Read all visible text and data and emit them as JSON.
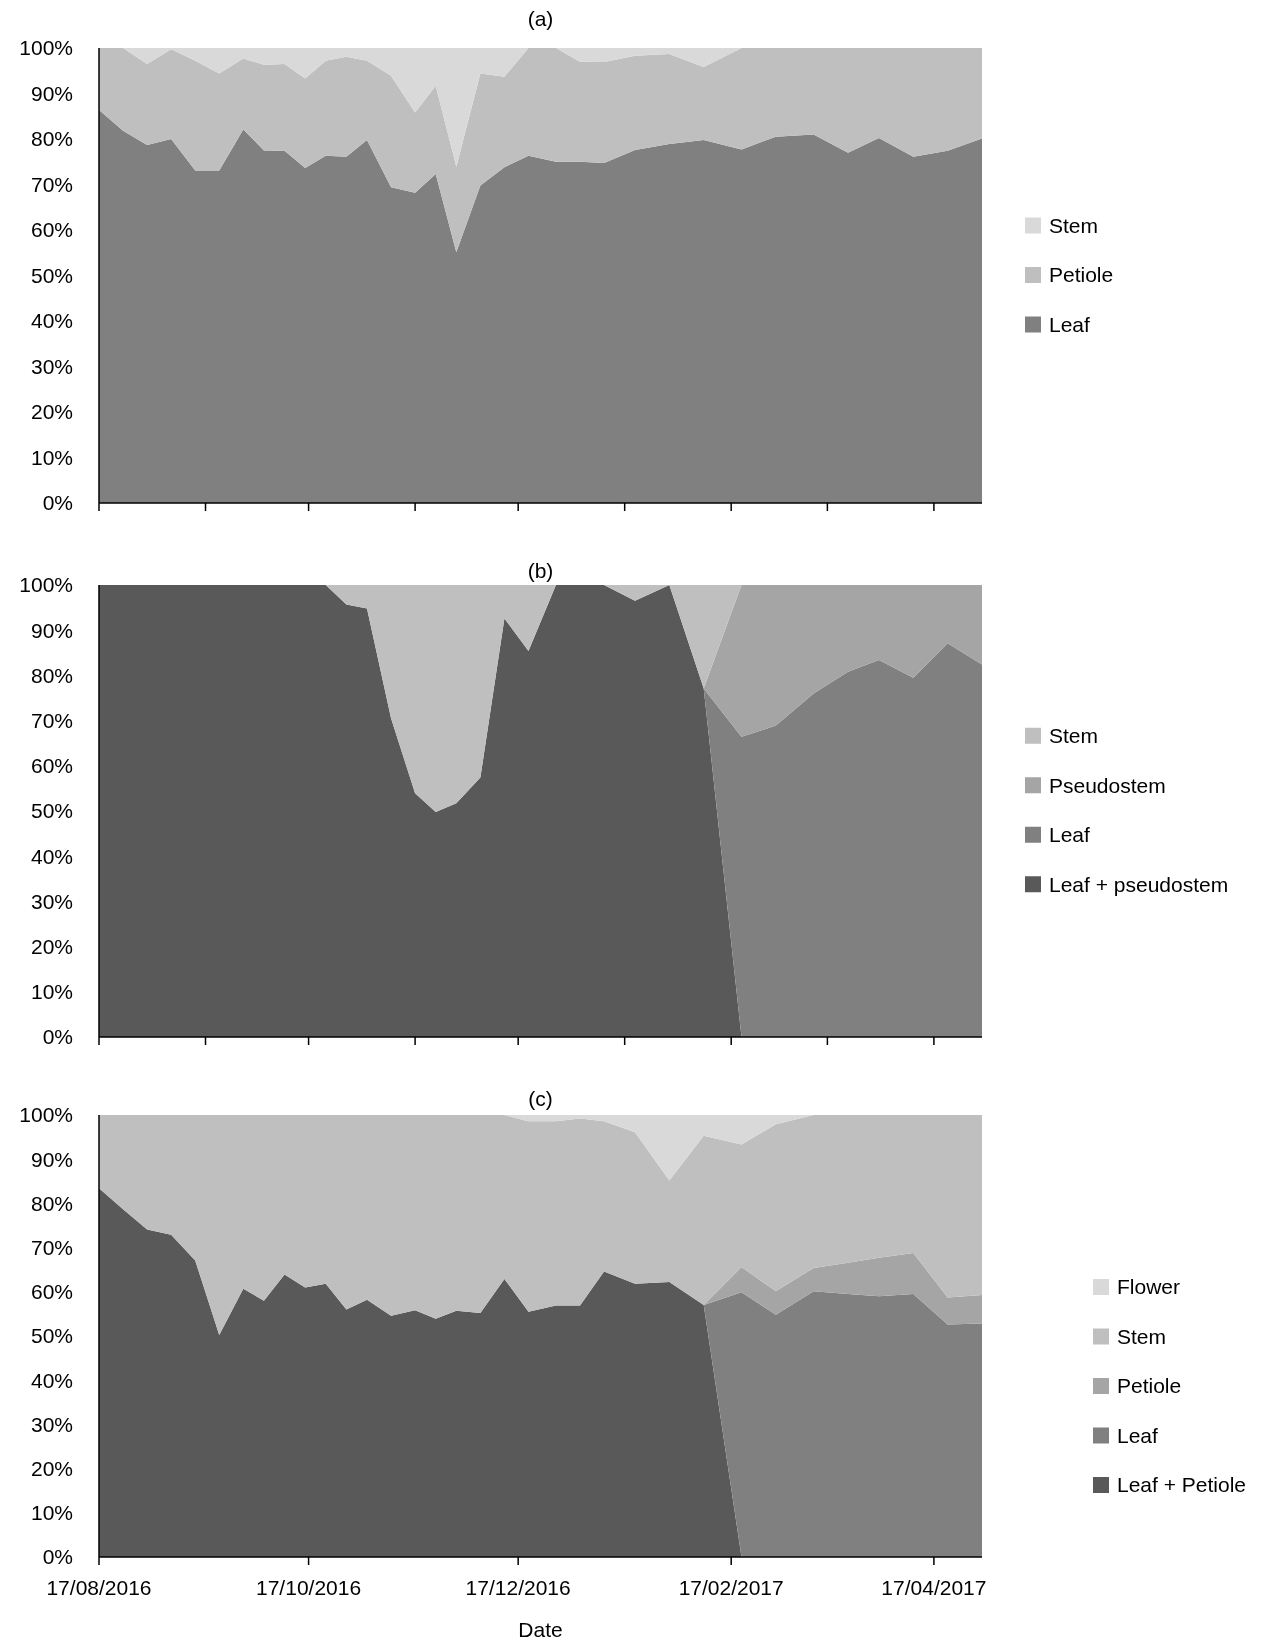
{
  "chart_data": [
    {
      "type": "area",
      "stacked": true,
      "title": "(a)",
      "legend": "right",
      "tick_labels": "y",
      "x": [
        "2016-08-17",
        "2016-08-24",
        "2016-08-31",
        "2016-09-07",
        "2016-09-14",
        "2016-09-21",
        "2016-09-28",
        "2016-10-04",
        "2016-10-10",
        "2016-10-16",
        "2016-10-22",
        "2016-10-28",
        "2016-11-03",
        "2016-11-10",
        "2016-11-17",
        "2016-11-23",
        "2016-11-29",
        "2016-12-06",
        "2016-12-13",
        "2016-12-20",
        "2016-12-28",
        "2017-01-04",
        "2017-01-11",
        "2017-01-20",
        "2017-01-30",
        "2017-02-09",
        "2017-02-20",
        "2017-03-02",
        "2017-03-13",
        "2017-03-23",
        "2017-04-01",
        "2017-04-11",
        "2017-04-21",
        "2017-05-01"
      ],
      "xlim": [
        "2016-08-17",
        "2017-05-01"
      ],
      "xticks": [
        {
          "value": "2016-08-17",
          "label": null
        },
        {
          "value": "2016-09-17",
          "label": null
        },
        {
          "value": "2016-10-17",
          "label": null
        },
        {
          "value": "2016-11-17",
          "label": null
        },
        {
          "value": "2016-12-17",
          "label": null
        },
        {
          "value": "2017-01-17",
          "label": null
        },
        {
          "value": "2017-02-17",
          "label": null
        },
        {
          "value": "2017-03-17",
          "label": null
        },
        {
          "value": "2017-04-17",
          "label": null
        }
      ],
      "ylim": [
        0,
        100
      ],
      "yticks": [
        {
          "value": 0,
          "label": "0%"
        },
        {
          "value": 10,
          "label": "10%"
        },
        {
          "value": 20,
          "label": "20%"
        },
        {
          "value": 30,
          "label": "30%"
        },
        {
          "value": 40,
          "label": "40%"
        },
        {
          "value": 50,
          "label": "50%"
        },
        {
          "value": 60,
          "label": "60%"
        },
        {
          "value": 70,
          "label": "70%"
        },
        {
          "value": 80,
          "label": "80%"
        },
        {
          "value": 90,
          "label": "90%"
        },
        {
          "value": 100,
          "label": "100%"
        }
      ],
      "series": [
        {
          "name": "Leaf",
          "color": "#808080",
          "values": [
            86.4,
            81.8,
            78.7,
            80.0,
            73.1,
            73.1,
            82.1,
            77.5,
            77.4,
            73.6,
            76.3,
            76.1,
            79.8,
            69.4,
            68.2,
            72.3,
            55.1,
            69.8,
            73.8,
            76.3,
            75.0,
            75.0,
            74.7,
            77.6,
            78.9,
            79.8,
            77.7,
            80.5,
            81.0,
            77.0,
            80.2,
            76.1,
            77.4,
            80.1
          ]
        },
        {
          "name": "Petiole",
          "color": "#bfbfbf",
          "values": [
            13.6,
            18.2,
            17.8,
            19.7,
            24.1,
            21.3,
            15.6,
            18.8,
            19.1,
            19.7,
            20.9,
            22.0,
            17.4,
            24.5,
            17.6,
            19.4,
            18.8,
            24.6,
            19.9,
            23.7,
            25.0,
            22.0,
            22.2,
            20.7,
            19.8,
            16.0,
            22.3,
            19.5,
            19.0,
            23.0,
            19.8,
            23.9,
            22.6,
            19.9
          ]
        },
        {
          "name": "Stem",
          "color": "#d9d9d9",
          "values": [
            0,
            0,
            3.5,
            0.3,
            2.8,
            5.6,
            2.3,
            3.7,
            3.5,
            6.7,
            2.8,
            1.9,
            2.8,
            6.1,
            14.2,
            8.3,
            26.1,
            5.6,
            6.3,
            0,
            0,
            3.0,
            3.1,
            1.7,
            1.3,
            4.2,
            0,
            null,
            null,
            null,
            null,
            null,
            null,
            null
          ]
        }
      ]
    },
    {
      "type": "area",
      "stacked": true,
      "title": "(b)",
      "legend": "right",
      "tick_labels": "y",
      "x": [
        "2016-08-17",
        "2016-08-24",
        "2016-08-31",
        "2016-09-07",
        "2016-09-14",
        "2016-09-21",
        "2016-09-28",
        "2016-10-04",
        "2016-10-10",
        "2016-10-16",
        "2016-10-22",
        "2016-10-28",
        "2016-11-03",
        "2016-11-10",
        "2016-11-17",
        "2016-11-23",
        "2016-11-29",
        "2016-12-06",
        "2016-12-13",
        "2016-12-20",
        "2016-12-28",
        "2017-01-04",
        "2017-01-11",
        "2017-01-20",
        "2017-01-30",
        "2017-02-09",
        "2017-02-20",
        "2017-03-02",
        "2017-03-13",
        "2017-03-23",
        "2017-04-01",
        "2017-04-11",
        "2017-04-21",
        "2017-05-01"
      ],
      "xlim": [
        "2016-08-17",
        "2017-05-01"
      ],
      "xticks": [
        {
          "value": "2016-08-17",
          "label": null
        },
        {
          "value": "2016-09-17",
          "label": null
        },
        {
          "value": "2016-10-17",
          "label": null
        },
        {
          "value": "2016-11-17",
          "label": null
        },
        {
          "value": "2016-12-17",
          "label": null
        },
        {
          "value": "2017-01-17",
          "label": null
        },
        {
          "value": "2017-02-17",
          "label": null
        },
        {
          "value": "2017-03-17",
          "label": null
        },
        {
          "value": "2017-04-17",
          "label": null
        }
      ],
      "ylim": [
        0,
        100
      ],
      "yticks": [
        {
          "value": 0,
          "label": "0%"
        },
        {
          "value": 10,
          "label": "10%"
        },
        {
          "value": 20,
          "label": "20%"
        },
        {
          "value": 30,
          "label": "30%"
        },
        {
          "value": 40,
          "label": "40%"
        },
        {
          "value": 50,
          "label": "50%"
        },
        {
          "value": 60,
          "label": "60%"
        },
        {
          "value": 70,
          "label": "70%"
        },
        {
          "value": 80,
          "label": "80%"
        },
        {
          "value": 90,
          "label": "90%"
        },
        {
          "value": 100,
          "label": "100%"
        }
      ],
      "series": [
        {
          "name": "Leaf + pseudostem",
          "color": "#595959",
          "values": [
            100,
            100,
            100,
            100,
            100,
            100,
            100,
            100,
            100,
            100,
            100,
            95.7,
            94.8,
            70.5,
            53.9,
            49.8,
            51.7,
            57.4,
            92.6,
            85.4,
            100,
            100,
            100,
            96.5,
            100,
            77.1,
            0,
            null,
            null,
            null,
            null,
            null,
            null,
            null
          ]
        },
        {
          "name": "Leaf",
          "color": "#808080",
          "values": [
            null,
            null,
            null,
            null,
            null,
            null,
            null,
            null,
            null,
            null,
            null,
            null,
            null,
            null,
            null,
            null,
            null,
            null,
            null,
            null,
            null,
            null,
            null,
            null,
            null,
            0,
            66.4,
            68.9,
            76.0,
            80.8,
            83.4,
            79.5,
            87.1,
            82.4
          ]
        },
        {
          "name": "Pseudostem",
          "color": "#a5a5a5",
          "values": [
            null,
            null,
            null,
            null,
            null,
            null,
            null,
            null,
            null,
            null,
            null,
            null,
            null,
            null,
            null,
            null,
            null,
            null,
            null,
            null,
            null,
            null,
            null,
            null,
            null,
            0,
            33.6,
            31.1,
            24.0,
            19.2,
            16.6,
            20.5,
            12.9,
            17.6
          ]
        },
        {
          "name": "Stem",
          "color": "#bfbfbf",
          "values": [
            0,
            0,
            0,
            0,
            0,
            0,
            0,
            0,
            0,
            0,
            0,
            4.3,
            5.2,
            29.5,
            46.1,
            50.2,
            48.3,
            42.6,
            7.4,
            14.6,
            0,
            0,
            0,
            3.5,
            0,
            22.9,
            0,
            null,
            null,
            null,
            null,
            null,
            null,
            null
          ]
        }
      ]
    },
    {
      "type": "area",
      "stacked": true,
      "title": "(c)",
      "xlabel": "Date",
      "legend": "right",
      "x": [
        "2016-08-17",
        "2016-08-24",
        "2016-08-31",
        "2016-09-07",
        "2016-09-14",
        "2016-09-21",
        "2016-09-28",
        "2016-10-04",
        "2016-10-10",
        "2016-10-16",
        "2016-10-22",
        "2016-10-28",
        "2016-11-03",
        "2016-11-10",
        "2016-11-17",
        "2016-11-23",
        "2016-11-29",
        "2016-12-06",
        "2016-12-13",
        "2016-12-20",
        "2016-12-28",
        "2017-01-04",
        "2017-01-11",
        "2017-01-20",
        "2017-01-30",
        "2017-02-09",
        "2017-02-20",
        "2017-03-02",
        "2017-03-13",
        "2017-03-23",
        "2017-04-01",
        "2017-04-11",
        "2017-04-21",
        "2017-05-01"
      ],
      "xlim": [
        "2016-08-17",
        "2017-05-01"
      ],
      "xticks": [
        {
          "value": "2016-08-17",
          "label": "17/08/2016"
        },
        {
          "value": "2016-10-17",
          "label": "17/10/2016"
        },
        {
          "value": "2016-12-17",
          "label": "17/12/2016"
        },
        {
          "value": "2017-02-17",
          "label": "17/02/2017"
        },
        {
          "value": "2017-04-17",
          "label": "17/04/2017"
        }
      ],
      "ylim": [
        0,
        100
      ],
      "yticks": [
        {
          "value": 0,
          "label": "0%"
        },
        {
          "value": 10,
          "label": "10%"
        },
        {
          "value": 20,
          "label": "20%"
        },
        {
          "value": 30,
          "label": "30%"
        },
        {
          "value": 40,
          "label": "40%"
        },
        {
          "value": 50,
          "label": "50%"
        },
        {
          "value": 60,
          "label": "60%"
        },
        {
          "value": 70,
          "label": "70%"
        },
        {
          "value": 80,
          "label": "80%"
        },
        {
          "value": 90,
          "label": "90%"
        },
        {
          "value": 100,
          "label": "100%"
        }
      ],
      "series": [
        {
          "name": "Leaf + Petiole",
          "color": "#595959",
          "values": [
            83.4,
            78.7,
            74.1,
            72.9,
            67.1,
            50.2,
            60.7,
            58.0,
            63.9,
            61.0,
            61.8,
            56.0,
            58.2,
            54.6,
            55.8,
            53.9,
            55.7,
            55.2,
            62.9,
            55.5,
            56.9,
            56.9,
            64.6,
            61.8,
            62.2,
            57.0,
            0,
            null,
            null,
            null,
            null,
            null,
            null,
            null
          ]
        },
        {
          "name": "Leaf",
          "color": "#808080",
          "values": [
            null,
            null,
            null,
            null,
            null,
            null,
            null,
            null,
            null,
            null,
            null,
            null,
            null,
            null,
            null,
            null,
            null,
            null,
            null,
            null,
            null,
            null,
            null,
            null,
            null,
            0,
            59.9,
            54.8,
            60.1,
            59.5,
            59.0,
            59.5,
            52.6,
            52.8
          ]
        },
        {
          "name": "Petiole",
          "color": "#a5a5a5",
          "values": [
            null,
            null,
            null,
            null,
            null,
            null,
            null,
            null,
            null,
            null,
            null,
            null,
            null,
            null,
            null,
            null,
            null,
            null,
            null,
            null,
            null,
            null,
            null,
            null,
            null,
            0,
            5.7,
            5.3,
            5.3,
            7.1,
            8.7,
            9.3,
            6.1,
            6.5
          ]
        },
        {
          "name": "Stem",
          "color": "#bfbfbf",
          "values": [
            16.6,
            21.3,
            25.9,
            27.1,
            32.9,
            49.8,
            39.3,
            42.0,
            36.1,
            39.0,
            38.2,
            44.0,
            41.8,
            45.4,
            44.2,
            46.1,
            44.3,
            44.8,
            37.1,
            43.1,
            41.7,
            42.3,
            34.0,
            34.3,
            23.0,
            38.3,
            27.7,
            37.8,
            34.6,
            33.4,
            32.3,
            31.2,
            41.3,
            40.7
          ]
        },
        {
          "name": "Flower",
          "color": "#d9d9d9",
          "values": [
            null,
            null,
            null,
            null,
            null,
            null,
            null,
            null,
            null,
            null,
            null,
            null,
            null,
            null,
            null,
            null,
            null,
            null,
            0,
            1.4,
            1.4,
            0.8,
            1.4,
            3.9,
            14.8,
            4.7,
            6.7,
            2.1,
            0,
            null,
            null,
            null,
            null,
            null
          ]
        }
      ]
    }
  ]
}
